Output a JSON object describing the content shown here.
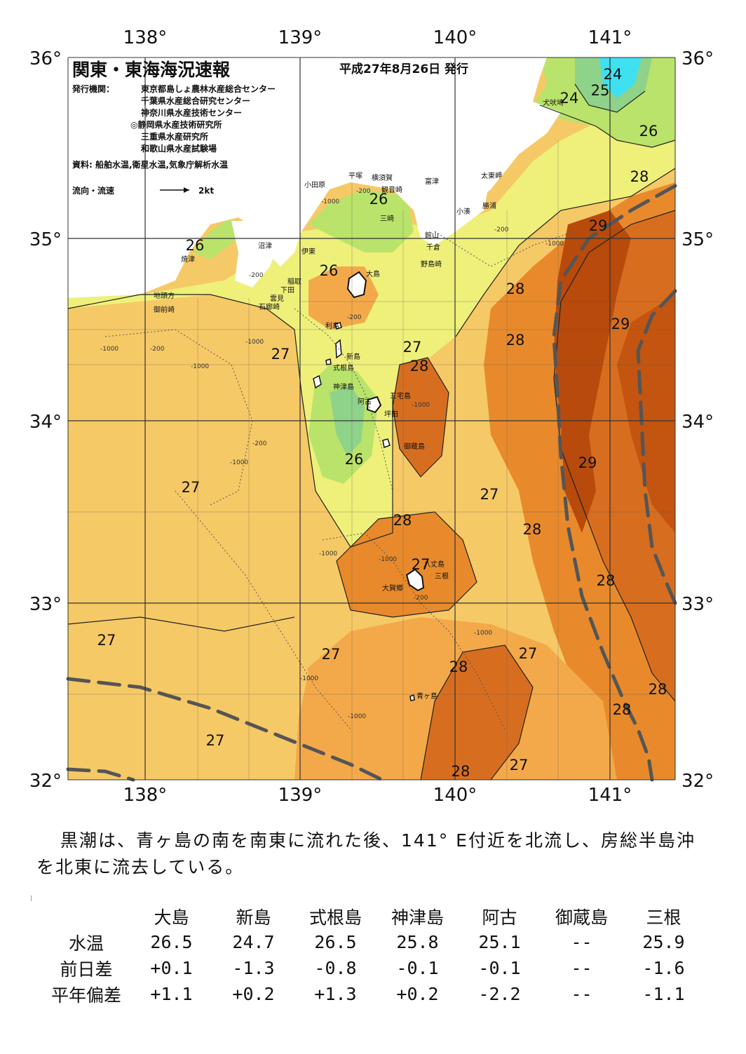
{
  "header": {
    "title": "関東・東海海況速報",
    "date": "平成27年8月26日 発行",
    "agencies_label": "発行機関：",
    "agencies": [
      "東京都島しょ農林水産総合センター",
      "千葉県水産総合研究センター",
      "神奈川県水産技術センター",
      "◎静岡県水産技術研究所",
      "三重県水産研究所",
      "和歌山県水産試験場"
    ],
    "sources": "資料: 船舶水温,衛星水温,気象庁解析水温",
    "flow_legend": "流向・流速",
    "flow_scale": "2kt"
  },
  "axes": {
    "longitudes": [
      "138°",
      "139°",
      "140°",
      "141°"
    ],
    "latitudes": [
      "36°",
      "35°",
      "34°",
      "33°",
      "32°"
    ]
  },
  "isotherm_labels": [
    "24",
    "24",
    "25",
    "26",
    "28",
    "29",
    "29",
    "28",
    "28",
    "27",
    "28",
    "26",
    "26",
    "26",
    "27",
    "27",
    "28",
    "26",
    "27",
    "27",
    "28",
    "28",
    "29",
    "28",
    "27",
    "28",
    "27",
    "27",
    "28",
    "27",
    "28",
    "28",
    "28",
    "27",
    "28",
    "27"
  ],
  "place_names": {
    "tokyo_area": [
      "犬吠埼",
      "太東岬",
      "勝浦",
      "小湊",
      "富津",
      "館山",
      "千倉",
      "野島崎",
      "横須賀",
      "観音崎",
      "三崎",
      "平塚",
      "小田原"
    ],
    "izu": [
      "沼津",
      "伊東",
      "焼津",
      "稲取",
      "下田",
      "雲見",
      "石廊崎",
      "地頭方",
      "御前崎"
    ],
    "islands": [
      "大島",
      "利島",
      "新島",
      "式根島",
      "神津島",
      "三宅島",
      "阿古",
      "坪田",
      "御蔵島",
      "八丈島",
      "三根",
      "大賀郷",
      "青ヶ島"
    ]
  },
  "depth_labels": [
    "-1000",
    "-200"
  ],
  "summary": "黒潮は、青ヶ島の南を南東に流れた後、141° E付近を北流し、房総半島沖を北東に流去している。",
  "table": {
    "columns": [
      "大島",
      "新島",
      "式根島",
      "神津島",
      "阿古",
      "御蔵島",
      "三根"
    ],
    "rows": [
      {
        "label": "水温",
        "values": [
          "26.5",
          "24.7",
          "26.5",
          "25.8",
          "25.1",
          "--",
          "25.9"
        ]
      },
      {
        "label": "前日差",
        "values": [
          "+0.1",
          "-1.3",
          "-0.8",
          "-0.1",
          "-0.1",
          "--",
          "-1.6"
        ]
      },
      {
        "label": "平年偏差",
        "values": [
          "+1.1",
          "+0.2",
          "+1.3",
          "+0.2",
          "-2.2",
          "--",
          "-1.1"
        ]
      }
    ]
  },
  "colors": {
    "c24": "#3fe0f0",
    "c25": "#8fd28a",
    "c26": "#b9e36a",
    "c26b": "#eef07a",
    "c27": "#f6c967",
    "c27b": "#f3a94a",
    "c28": "#e88a2c",
    "c28b": "#d76e1f",
    "c29": "#c35510",
    "c29b": "#b84a0c",
    "land": "#ffffff",
    "kuroshio": "#555555"
  }
}
